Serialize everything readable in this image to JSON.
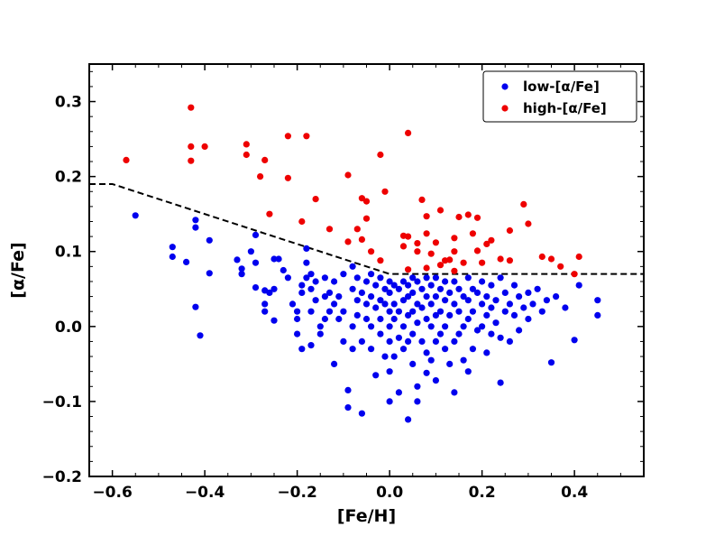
{
  "chart_data": {
    "type": "scatter",
    "title": "",
    "xlabel": "[Fe/H]",
    "ylabel": "[α/Fe]",
    "xlim": [
      -0.65,
      0.55
    ],
    "ylim": [
      -0.2,
      0.35
    ],
    "xticks": [
      -0.6,
      -0.4,
      -0.2,
      0.0,
      0.2,
      0.4
    ],
    "yticks": [
      -0.2,
      -0.1,
      0.0,
      0.1,
      0.2,
      0.3
    ],
    "xtick_labels": [
      "−0.6",
      "−0.4",
      "−0.2",
      "0.0",
      "0.2",
      "0.4"
    ],
    "ytick_labels": [
      "−0.2",
      "−0.1",
      "0.0",
      "0.1",
      "0.2",
      "0.3"
    ],
    "grid": false,
    "legend_position": "top-right",
    "dividing_line": {
      "style": "dashed",
      "color": "#000000",
      "points": [
        [
          -0.65,
          0.19
        ],
        [
          -0.6,
          0.19
        ],
        [
          0.0,
          0.07
        ],
        [
          0.55,
          0.07
        ]
      ]
    },
    "series": [
      {
        "name": "low-[α/Fe]",
        "color": "#0000ee",
        "points": [
          [
            -0.55,
            0.148
          ],
          [
            -0.47,
            0.106
          ],
          [
            -0.47,
            0.093
          ],
          [
            -0.44,
            0.086
          ],
          [
            -0.42,
            0.142
          ],
          [
            -0.42,
            0.132
          ],
          [
            -0.42,
            0.026
          ],
          [
            -0.41,
            -0.012
          ],
          [
            -0.39,
            0.115
          ],
          [
            -0.39,
            0.071
          ],
          [
            -0.33,
            0.089
          ],
          [
            -0.32,
            0.077
          ],
          [
            -0.32,
            0.07
          ],
          [
            -0.3,
            0.1
          ],
          [
            -0.29,
            0.122
          ],
          [
            -0.29,
            0.085
          ],
          [
            -0.29,
            0.052
          ],
          [
            -0.27,
            0.048
          ],
          [
            -0.27,
            0.03
          ],
          [
            -0.27,
            0.02
          ],
          [
            -0.26,
            0.045
          ],
          [
            -0.25,
            0.09
          ],
          [
            -0.25,
            0.05
          ],
          [
            -0.25,
            0.008
          ],
          [
            -0.24,
            0.09
          ],
          [
            -0.23,
            0.075
          ],
          [
            -0.22,
            0.065
          ],
          [
            -0.21,
            0.03
          ],
          [
            -0.2,
            0.01
          ],
          [
            -0.2,
            -0.01
          ],
          [
            -0.2,
            0.02
          ],
          [
            -0.19,
            0.055
          ],
          [
            -0.19,
            0.045
          ],
          [
            -0.19,
            -0.03
          ],
          [
            -0.18,
            0.104
          ],
          [
            -0.18,
            0.085
          ],
          [
            -0.18,
            0.065
          ],
          [
            -0.17,
            0.07
          ],
          [
            -0.17,
            0.05
          ],
          [
            -0.17,
            0.02
          ],
          [
            -0.17,
            -0.025
          ],
          [
            -0.16,
            0.06
          ],
          [
            -0.16,
            0.035
          ],
          [
            -0.15,
            0.0
          ],
          [
            -0.15,
            -0.01
          ],
          [
            -0.14,
            0.065
          ],
          [
            -0.14,
            0.04
          ],
          [
            -0.14,
            0.01
          ],
          [
            -0.13,
            0.045
          ],
          [
            -0.13,
            0.02
          ],
          [
            -0.12,
            0.06
          ],
          [
            -0.12,
            0.03
          ],
          [
            -0.12,
            -0.05
          ],
          [
            -0.11,
            0.04
          ],
          [
            -0.11,
            0.01
          ],
          [
            -0.1,
            0.07
          ],
          [
            -0.1,
            0.02
          ],
          [
            -0.1,
            -0.02
          ],
          [
            -0.09,
            -0.085
          ],
          [
            -0.09,
            -0.108
          ],
          [
            -0.08,
            0.08
          ],
          [
            -0.08,
            0.05
          ],
          [
            -0.08,
            0.0
          ],
          [
            -0.08,
            -0.03
          ],
          [
            -0.07,
            0.065
          ],
          [
            -0.07,
            0.035
          ],
          [
            -0.07,
            0.015
          ],
          [
            -0.06,
            0.045
          ],
          [
            -0.06,
            -0.02
          ],
          [
            -0.06,
            -0.116
          ],
          [
            -0.05,
            0.06
          ],
          [
            -0.05,
            0.03
          ],
          [
            -0.05,
            0.01
          ],
          [
            -0.04,
            0.07
          ],
          [
            -0.04,
            0.04
          ],
          [
            -0.04,
            0.0
          ],
          [
            -0.04,
            -0.03
          ],
          [
            -0.03,
            0.055
          ],
          [
            -0.03,
            0.025
          ],
          [
            -0.03,
            -0.065
          ],
          [
            -0.02,
            0.065
          ],
          [
            -0.02,
            0.035
          ],
          [
            -0.02,
            0.01
          ],
          [
            -0.02,
            -0.01
          ],
          [
            -0.01,
            0.05
          ],
          [
            -0.01,
            0.03
          ],
          [
            -0.01,
            -0.04
          ],
          [
            0.0,
            0.06
          ],
          [
            0.0,
            0.045
          ],
          [
            0.0,
            0.02
          ],
          [
            0.0,
            0.0
          ],
          [
            0.0,
            -0.02
          ],
          [
            0.0,
            -0.06
          ],
          [
            0.0,
            -0.1
          ],
          [
            0.01,
            0.055
          ],
          [
            0.01,
            0.03
          ],
          [
            0.01,
            0.01
          ],
          [
            0.01,
            -0.04
          ],
          [
            0.02,
            0.05
          ],
          [
            0.02,
            0.02
          ],
          [
            0.02,
            -0.015
          ],
          [
            0.02,
            -0.088
          ],
          [
            0.03,
            0.06
          ],
          [
            0.03,
            0.035
          ],
          [
            0.03,
            0.0
          ],
          [
            0.03,
            -0.03
          ],
          [
            0.04,
            0.055
          ],
          [
            0.04,
            0.04
          ],
          [
            0.04,
            0.015
          ],
          [
            0.04,
            -0.02
          ],
          [
            0.04,
            -0.124
          ],
          [
            0.05,
            0.065
          ],
          [
            0.05,
            0.045
          ],
          [
            0.05,
            0.02
          ],
          [
            0.05,
            -0.01
          ],
          [
            0.05,
            -0.05
          ],
          [
            0.06,
            0.06
          ],
          [
            0.06,
            0.03
          ],
          [
            0.06,
            0.005
          ],
          [
            0.06,
            -0.08
          ],
          [
            0.06,
            -0.1
          ],
          [
            0.07,
            0.05
          ],
          [
            0.07,
            0.025
          ],
          [
            0.07,
            -0.02
          ],
          [
            0.08,
            0.065
          ],
          [
            0.08,
            0.04
          ],
          [
            0.08,
            0.01
          ],
          [
            0.08,
            -0.035
          ],
          [
            0.08,
            -0.062
          ],
          [
            0.09,
            0.055
          ],
          [
            0.09,
            0.03
          ],
          [
            0.09,
            0.0
          ],
          [
            0.09,
            -0.045
          ],
          [
            0.1,
            0.065
          ],
          [
            0.1,
            0.04
          ],
          [
            0.1,
            0.015
          ],
          [
            0.1,
            -0.02
          ],
          [
            0.1,
            -0.072
          ],
          [
            0.11,
            0.05
          ],
          [
            0.11,
            0.02
          ],
          [
            0.11,
            -0.01
          ],
          [
            0.12,
            0.06
          ],
          [
            0.12,
            0.035
          ],
          [
            0.12,
            0.0
          ],
          [
            0.12,
            -0.03
          ],
          [
            0.13,
            0.045
          ],
          [
            0.13,
            0.015
          ],
          [
            0.13,
            -0.05
          ],
          [
            0.14,
            0.06
          ],
          [
            0.14,
            0.03
          ],
          [
            0.14,
            -0.02
          ],
          [
            0.14,
            -0.088
          ],
          [
            0.15,
            0.05
          ],
          [
            0.15,
            0.02
          ],
          [
            0.15,
            -0.01
          ],
          [
            0.16,
            0.04
          ],
          [
            0.16,
            0.0
          ],
          [
            0.16,
            -0.045
          ],
          [
            0.17,
            0.065
          ],
          [
            0.17,
            0.035
          ],
          [
            0.17,
            0.01
          ],
          [
            0.17,
            -0.06
          ],
          [
            0.18,
            0.05
          ],
          [
            0.18,
            0.02
          ],
          [
            0.18,
            -0.03
          ],
          [
            0.19,
            0.045
          ],
          [
            0.19,
            -0.005
          ],
          [
            0.2,
            0.06
          ],
          [
            0.2,
            0.03
          ],
          [
            0.2,
            0.0
          ],
          [
            0.21,
            0.04
          ],
          [
            0.21,
            0.015
          ],
          [
            0.21,
            -0.035
          ],
          [
            0.22,
            0.055
          ],
          [
            0.22,
            0.025
          ],
          [
            0.22,
            -0.01
          ],
          [
            0.23,
            0.035
          ],
          [
            0.23,
            0.005
          ],
          [
            0.24,
            0.065
          ],
          [
            0.24,
            -0.015
          ],
          [
            0.24,
            -0.075
          ],
          [
            0.25,
            0.045
          ],
          [
            0.25,
            0.02
          ],
          [
            0.26,
            0.03
          ],
          [
            0.26,
            -0.02
          ],
          [
            0.27,
            0.055
          ],
          [
            0.27,
            0.015
          ],
          [
            0.28,
            0.04
          ],
          [
            0.28,
            -0.005
          ],
          [
            0.29,
            0.025
          ],
          [
            0.3,
            0.045
          ],
          [
            0.3,
            0.01
          ],
          [
            0.31,
            0.03
          ],
          [
            0.32,
            0.05
          ],
          [
            0.33,
            0.02
          ],
          [
            0.34,
            0.035
          ],
          [
            0.35,
            -0.048
          ],
          [
            0.36,
            0.04
          ],
          [
            0.38,
            0.025
          ],
          [
            0.4,
            -0.018
          ],
          [
            0.41,
            0.055
          ],
          [
            0.45,
            0.035
          ],
          [
            0.45,
            0.015
          ]
        ]
      },
      {
        "name": "high-[α/Fe]",
        "color": "#ee0000",
        "points": [
          [
            -0.57,
            0.222
          ],
          [
            -0.43,
            0.292
          ],
          [
            -0.43,
            0.24
          ],
          [
            -0.43,
            0.221
          ],
          [
            -0.4,
            0.24
          ],
          [
            -0.31,
            0.243
          ],
          [
            -0.31,
            0.229
          ],
          [
            -0.28,
            0.2
          ],
          [
            -0.27,
            0.222
          ],
          [
            -0.26,
            0.15
          ],
          [
            -0.22,
            0.254
          ],
          [
            -0.22,
            0.198
          ],
          [
            -0.19,
            0.14
          ],
          [
            -0.18,
            0.254
          ],
          [
            -0.16,
            0.17
          ],
          [
            -0.13,
            0.13
          ],
          [
            -0.09,
            0.202
          ],
          [
            -0.09,
            0.113
          ],
          [
            -0.07,
            0.13
          ],
          [
            -0.06,
            0.171
          ],
          [
            -0.05,
            0.167
          ],
          [
            -0.05,
            0.144
          ],
          [
            -0.06,
            0.116
          ],
          [
            -0.04,
            0.1
          ],
          [
            -0.02,
            0.088
          ],
          [
            -0.02,
            0.229
          ],
          [
            -0.01,
            0.18
          ],
          [
            0.03,
            0.121
          ],
          [
            0.03,
            0.107
          ],
          [
            0.04,
            0.258
          ],
          [
            0.04,
            0.12
          ],
          [
            0.04,
            0.076
          ],
          [
            0.06,
            0.111
          ],
          [
            0.06,
            0.1
          ],
          [
            0.07,
            0.169
          ],
          [
            0.08,
            0.147
          ],
          [
            0.08,
            0.124
          ],
          [
            0.08,
            0.078
          ],
          [
            0.09,
            0.097
          ],
          [
            0.1,
            0.112
          ],
          [
            0.11,
            0.155
          ],
          [
            0.11,
            0.082
          ],
          [
            0.12,
            0.088
          ],
          [
            0.13,
            0.089
          ],
          [
            0.14,
            0.118
          ],
          [
            0.14,
            0.1
          ],
          [
            0.14,
            0.074
          ],
          [
            0.15,
            0.146
          ],
          [
            0.16,
            0.085
          ],
          [
            0.17,
            0.149
          ],
          [
            0.18,
            0.124
          ],
          [
            0.19,
            0.145
          ],
          [
            0.19,
            0.101
          ],
          [
            0.2,
            0.085
          ],
          [
            0.21,
            0.11
          ],
          [
            0.22,
            0.115
          ],
          [
            0.24,
            0.09
          ],
          [
            0.26,
            0.128
          ],
          [
            0.26,
            0.088
          ],
          [
            0.29,
            0.163
          ],
          [
            0.3,
            0.137
          ],
          [
            0.33,
            0.093
          ],
          [
            0.35,
            0.09
          ],
          [
            0.37,
            0.08
          ],
          [
            0.4,
            0.07
          ],
          [
            0.41,
            0.093
          ]
        ]
      }
    ]
  }
}
